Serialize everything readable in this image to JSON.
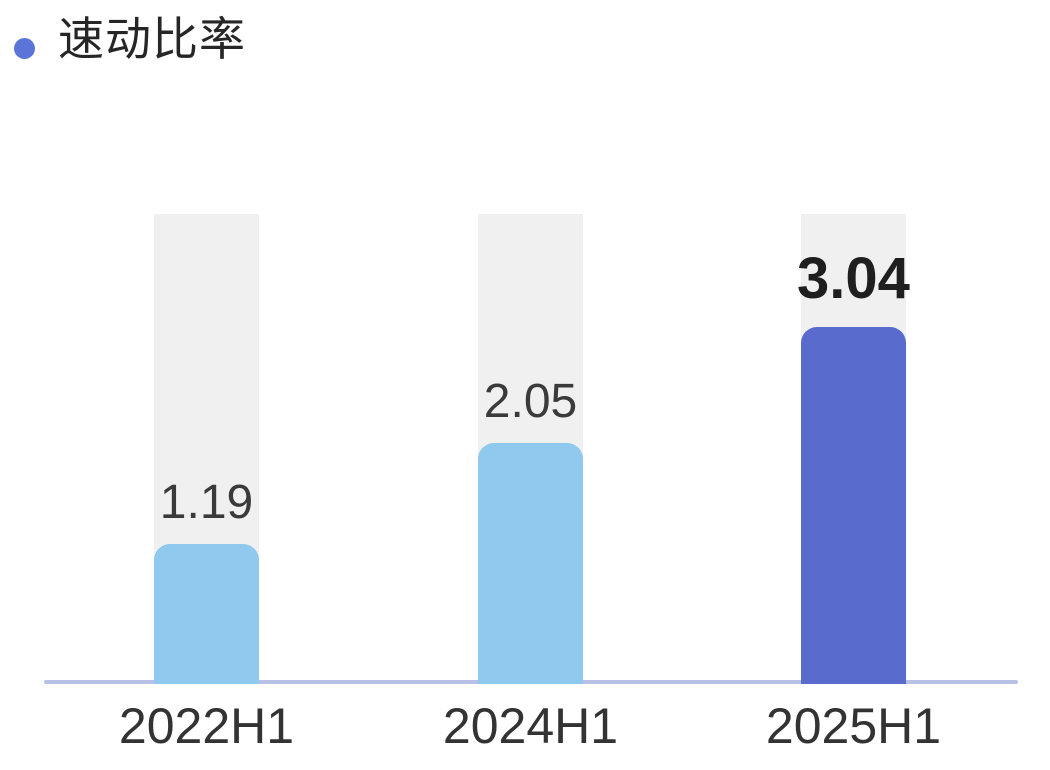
{
  "title": "速动比率",
  "colors": {
    "bullet": "#5b74d8",
    "title_text": "#262626",
    "track": "#f0f0f0",
    "bar": "#8fc9ee",
    "bar_highlight": "#5a6bce",
    "axis_line": "#b9bfe5",
    "value_text": "#3a3a3a",
    "value_text_highlight": "#1f1f1f",
    "axis_text": "#333333"
  },
  "chart_data": {
    "type": "bar",
    "title": "速动比率",
    "categories": [
      "2022H1",
      "2024H1",
      "2025H1"
    ],
    "values": [
      1.19,
      2.05,
      3.04
    ],
    "value_labels": [
      "1.19",
      "2.05",
      "3.04"
    ],
    "highlight_index": 2,
    "ylim": [
      0,
      4
    ],
    "xlabel": "",
    "ylabel": "",
    "grid": false,
    "legend": false,
    "value_labels_shown": true,
    "track_background_shown": true
  }
}
